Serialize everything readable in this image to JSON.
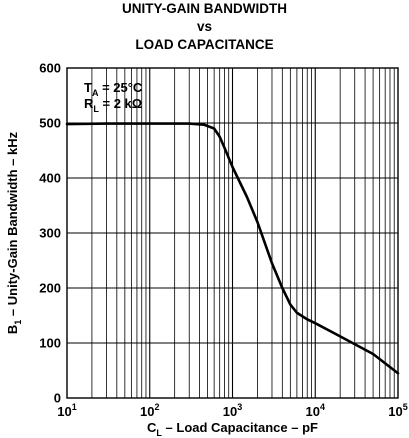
{
  "chart_data": {
    "type": "line",
    "title": [
      "UNITY-GAIN BANDWIDTH",
      "vs",
      "LOAD CAPACITANCE"
    ],
    "xlabel": {
      "main": "C",
      "sub": "L",
      "rest": " – Load Capacitance – pF"
    },
    "ylabel": {
      "main": "B",
      "sub": "1",
      "rest": " – Unity-Gain Bandwidth – kHz"
    },
    "xscale": "log",
    "xlim": [
      10,
      100000
    ],
    "ylim": [
      0,
      600
    ],
    "x_ticks": [
      {
        "value": 10,
        "base": "10",
        "exp": "1"
      },
      {
        "value": 100,
        "base": "10",
        "exp": "2"
      },
      {
        "value": 1000,
        "base": "10",
        "exp": "3"
      },
      {
        "value": 10000,
        "base": "10",
        "exp": "4"
      },
      {
        "value": 100000,
        "base": "10",
        "exp": "5"
      }
    ],
    "y_ticks": [
      0,
      100,
      200,
      300,
      400,
      500,
      600
    ],
    "grid": true,
    "annotations": [
      {
        "main": "T",
        "sub": "A",
        "rest": " = 25°C"
      },
      {
        "main": "R",
        "sub": "L",
        "rest": " = 2 kΩ"
      }
    ],
    "series": [
      {
        "x": [
          10,
          30,
          100,
          300,
          450,
          600,
          700,
          800,
          1000,
          1500,
          2000,
          3000,
          4000,
          5000,
          6000,
          8000,
          10000,
          20000,
          50000,
          100000
        ],
        "y": [
          498,
          499,
          499,
          499,
          497,
          490,
          475,
          455,
          420,
          365,
          320,
          245,
          200,
          170,
          155,
          143,
          136,
          112,
          80,
          45
        ]
      }
    ]
  }
}
